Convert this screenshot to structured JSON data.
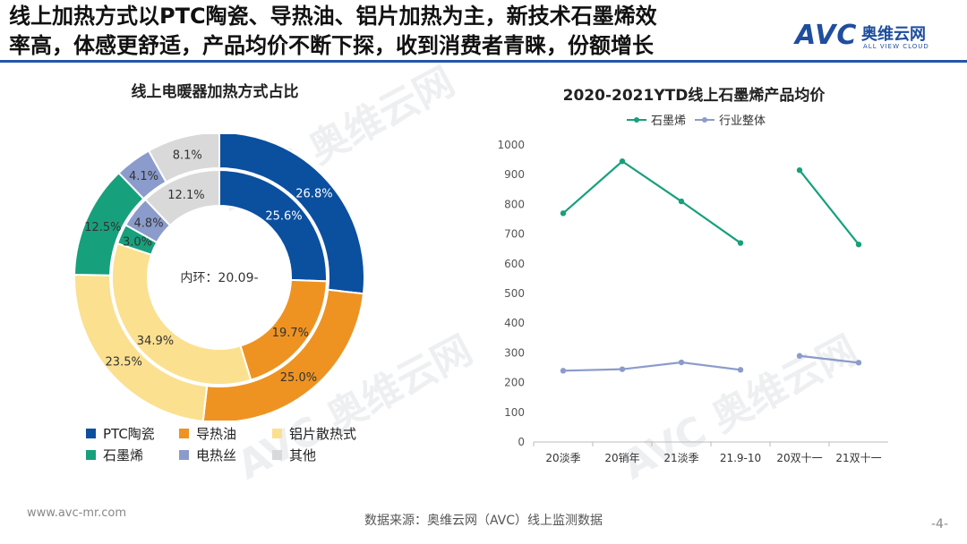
{
  "headline": {
    "line1": "线上加热方式以PTC陶瓷、导热油、铝片加热为主，新技术石墨烯效",
    "line2": "率高，体感更舒适，产品均价不断下探，收到消费者青睐，份额增长"
  },
  "logo": {
    "mark": "AVC",
    "cn": "奥维云网",
    "en": "ALL VIEW CLOUD"
  },
  "colors": {
    "accent": "#2457a8"
  },
  "watermark": {
    "cn": "奥维云网",
    "mark": "AVC",
    "en": "ALL VIEW CLOUD"
  },
  "chart_data": [
    {
      "type": "pie",
      "subtype": "double-donut",
      "title": "线上电暖器加热方式占比",
      "center_label": "内环：20.09-",
      "categories": [
        "PTC陶瓷",
        "导热油",
        "铝片散热式",
        "石墨烯",
        "电热丝",
        "其他"
      ],
      "colors": [
        "#0b4f9f",
        "#ee9322",
        "#fbe090",
        "#17a07c",
        "#8b9bcb",
        "#d9d9d9"
      ],
      "series": [
        {
          "name": "外环",
          "values": [
            26.8,
            25.0,
            23.5,
            12.5,
            4.1,
            8.1
          ],
          "labels": [
            "26.8%",
            "25.0%",
            "23.5%",
            "12.5%",
            "4.1%",
            "8.1%"
          ]
        },
        {
          "name": "内环",
          "values": [
            25.6,
            19.7,
            34.9,
            3.0,
            4.8,
            12.1
          ],
          "labels": [
            "25.6%",
            "19.7%",
            "34.9%",
            "3.0%",
            "4.8%",
            "12.1%"
          ]
        }
      ],
      "legend": "bottom"
    },
    {
      "type": "line",
      "title": "2020-2021YTD线上石墨烯产品均价",
      "categories": [
        "20淡季",
        "20销年",
        "21淡季",
        "21.9-10",
        "20双十一",
        "21双十一"
      ],
      "series": [
        {
          "name": "石墨烯",
          "color": "#17a07c",
          "values": [
            770,
            945,
            810,
            670,
            915,
            665
          ],
          "break_after_index": 3
        },
        {
          "name": "行业整体",
          "color": "#8b9bcb",
          "values": [
            240,
            245,
            268,
            243,
            290,
            267
          ],
          "break_after_index": 3
        }
      ],
      "y_ticks": [
        "0",
        "100",
        "200",
        "300",
        "400",
        "500",
        "600",
        "700",
        "800",
        "900",
        "1000"
      ],
      "ylim": [
        0,
        1000
      ],
      "grid": false,
      "legend": "top"
    }
  ],
  "source": "数据来源：奥维云网（AVC）线上监测数据",
  "site": "www.avc-mr.com",
  "page": "-4-"
}
